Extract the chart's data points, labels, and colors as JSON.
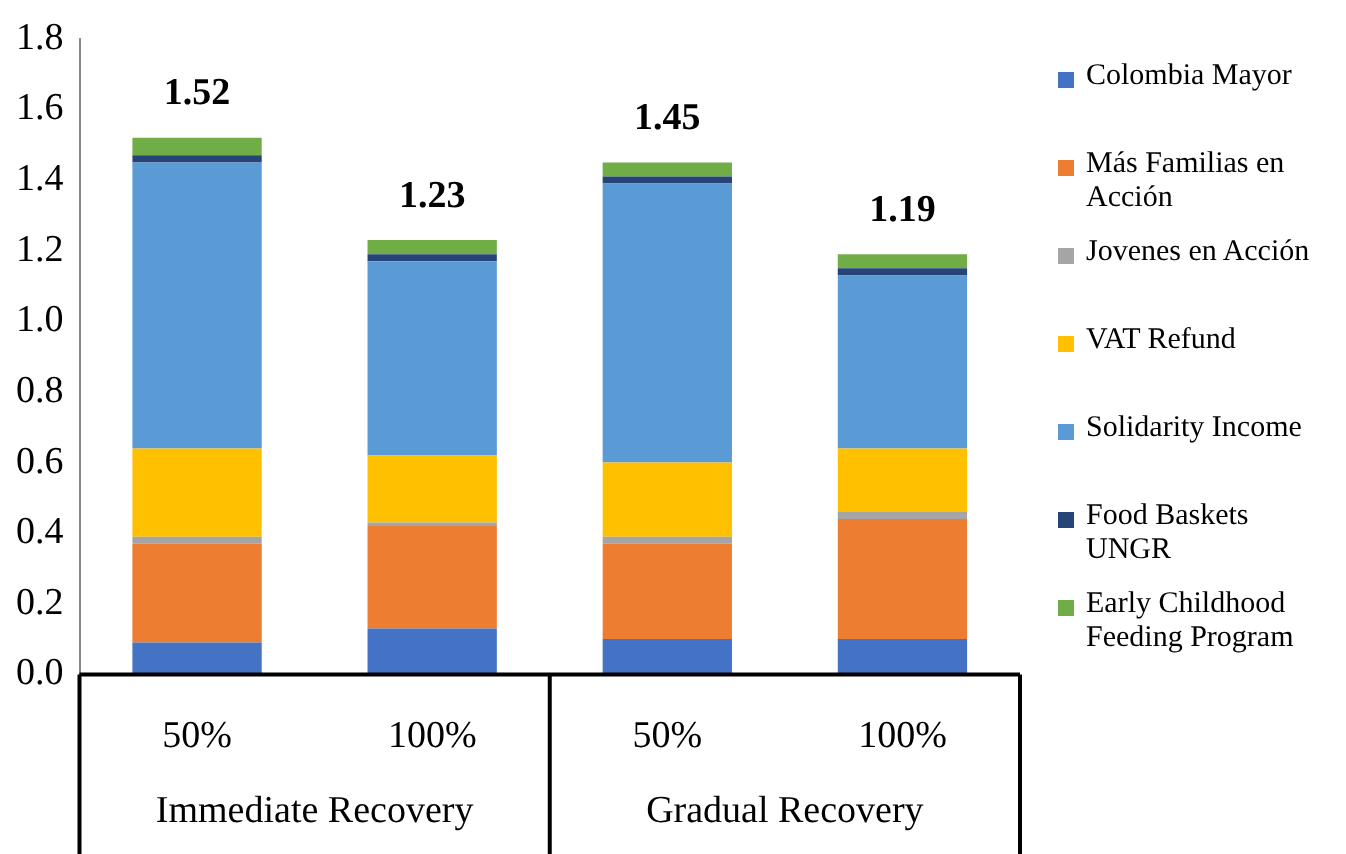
{
  "chart_data": {
    "type": "bar",
    "stacked": true,
    "categories": [
      "50%",
      "100%",
      "50%",
      "100%"
    ],
    "annotations": [
      "Immediate Recovery",
      "Gradual Recovery"
    ],
    "series": [
      {
        "name": "Colombia Mayor",
        "color": "#4472c4",
        "values": [
          0.09,
          0.13,
          0.1,
          0.1
        ]
      },
      {
        "name": "Más Familias en Acción",
        "color": "#ed7d31",
        "values": [
          0.28,
          0.29,
          0.27,
          0.34
        ]
      },
      {
        "name": "Jovenes en Acción",
        "color": "#a5a5a5",
        "values": [
          0.02,
          0.01,
          0.02,
          0.02
        ]
      },
      {
        "name": "VAT Refund",
        "color": "#ffc000",
        "values": [
          0.25,
          0.19,
          0.21,
          0.18
        ]
      },
      {
        "name": "Solidarity Income",
        "color": "#5b9bd5",
        "values": [
          0.81,
          0.55,
          0.79,
          0.49
        ]
      },
      {
        "name": "Food Baskets UNGR",
        "color": "#264478",
        "values": [
          0.02,
          0.02,
          0.02,
          0.02
        ]
      },
      {
        "name": "Early Childhood Feeding Program",
        "color": "#70ad47",
        "values": [
          0.05,
          0.04,
          0.04,
          0.04
        ]
      }
    ],
    "totals": [
      "1.52",
      "1.23",
      "1.45",
      "1.19"
    ],
    "ylim": [
      0,
      1.8
    ],
    "yticks": [
      {
        "value": 0,
        "label": "0.0"
      },
      0.2,
      0.4,
      0.6,
      0.8,
      {
        "value": 1,
        "label": "1.0"
      },
      1.2,
      1.4,
      1.6,
      1.8
    ],
    "grid": false,
    "legend": "right"
  }
}
